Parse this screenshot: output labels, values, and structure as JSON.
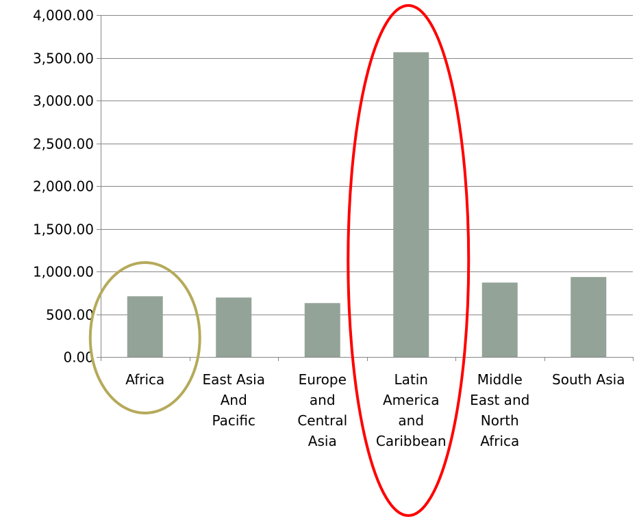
{
  "chart_data": {
    "type": "bar",
    "title": "",
    "xlabel": "",
    "ylabel": "",
    "ylim": [
      0,
      4000
    ],
    "yticks": [
      0,
      500,
      1000,
      1500,
      2000,
      2500,
      3000,
      3500,
      4000
    ],
    "ytick_labels": [
      "0.00",
      "500.00",
      "1,000.00",
      "1,500.00",
      "2,000.00",
      "2,500.00",
      "3,000.00",
      "3,500.00",
      "4,000.00"
    ],
    "categories": [
      [
        "Africa"
      ],
      [
        "East Asia",
        "And",
        "Pacific"
      ],
      [
        "Europe",
        "and",
        "Central",
        "Asia"
      ],
      [
        "Latin",
        "America",
        "and",
        "Caribbean"
      ],
      [
        "Middle",
        "East and",
        "North",
        "Africa"
      ],
      [
        "South Asia"
      ]
    ],
    "values": [
      710,
      695,
      630,
      3565,
      870,
      935
    ],
    "grid": true,
    "legend": "none",
    "colors": {
      "bar": "#93a398",
      "grid": "#868686",
      "axis": "#868686",
      "highlight_africa": "#b5aa5a",
      "highlight_latin_america": "#ff0000"
    },
    "annotations": [
      {
        "type": "ellipse",
        "target_category": "Africa",
        "color": "#b5aa5a"
      },
      {
        "type": "ellipse",
        "target_category": "Latin America and Caribbean",
        "color": "#ff0000"
      }
    ]
  }
}
